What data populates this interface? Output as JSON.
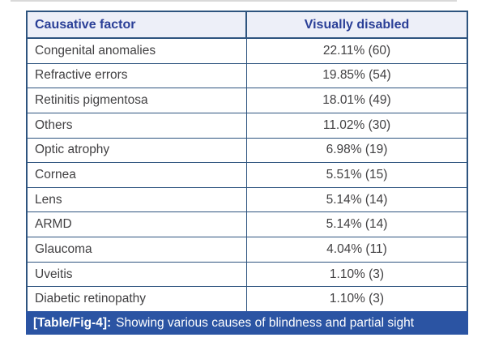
{
  "colors": {
    "border_navy": "#2e547f",
    "header_bg": "#edeff8",
    "header_text_blue": "#2a3f97",
    "body_text_gray": "#414042",
    "caption_bar_bg": "#2b54a3",
    "caption_text": "#ffffff"
  },
  "table": {
    "header": {
      "col1": "Causative factor",
      "col2": "Visually disabled"
    },
    "rows": [
      {
        "factor": "Congenital anomalies",
        "value": "22.11% (60)"
      },
      {
        "factor": "Refractive errors",
        "value": "19.85% (54)"
      },
      {
        "factor": "Retinitis pigmentosa",
        "value": "18.01% (49)"
      },
      {
        "factor": "Others",
        "value": "11.02% (30)"
      },
      {
        "factor": "Optic atrophy",
        "value": "6.98% (19)"
      },
      {
        "factor": "Cornea",
        "value": "5.51% (15)"
      },
      {
        "factor": "Lens",
        "value": "5.14% (14)"
      },
      {
        "factor": "ARMD",
        "value": "5.14% (14)"
      },
      {
        "factor": "Glaucoma",
        "value": "4.04% (11)"
      },
      {
        "factor": "Uveitis",
        "value": "1.10% (3)"
      },
      {
        "factor": "Diabetic retinopathy",
        "value": "1.10% (3)"
      }
    ],
    "caption": {
      "label": "[Table/Fig-4]:",
      "text": "Showing various causes of blindness and partial sight"
    }
  },
  "chart_data": {
    "type": "table",
    "title": "[Table/Fig-4]: Showing various causes of blindness and partial sight",
    "columns": [
      "Causative factor",
      "Visually disabled"
    ],
    "categories": [
      "Congenital anomalies",
      "Refractive errors",
      "Retinitis pigmentosa",
      "Others",
      "Optic atrophy",
      "Cornea",
      "Lens",
      "ARMD",
      "Glaucoma",
      "Uveitis",
      "Diabetic retinopathy"
    ],
    "percent_values": [
      22.11,
      19.85,
      18.01,
      11.02,
      6.98,
      5.51,
      5.14,
      5.14,
      4.04,
      1.1,
      1.1
    ],
    "counts": [
      60,
      54,
      49,
      30,
      19,
      15,
      14,
      14,
      11,
      3,
      3
    ]
  }
}
